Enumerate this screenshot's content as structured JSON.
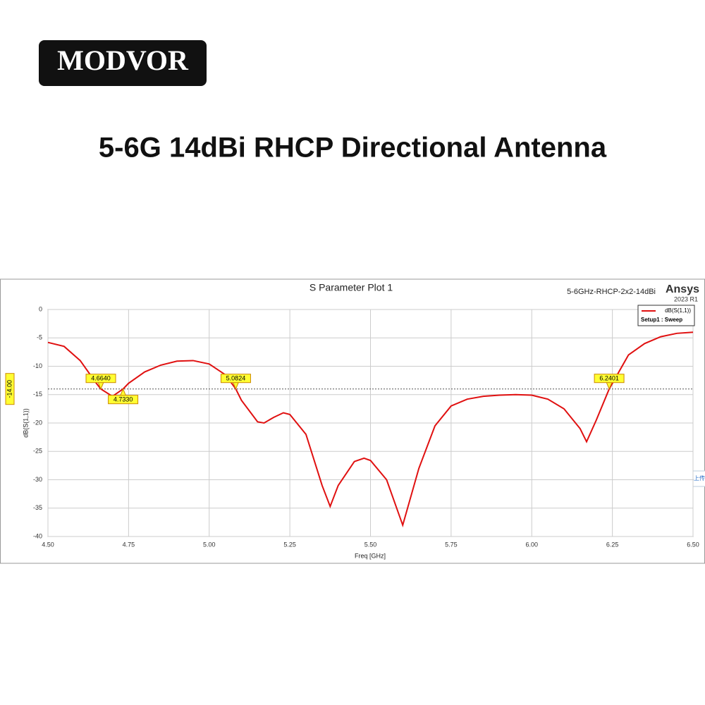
{
  "brand": "MODVOR",
  "headline": "5-6G 14dBi RHCP Directional Antenna",
  "overlay_text": "拖拽至此上传",
  "chart_data": {
    "type": "line",
    "title": "S Parameter Plot 1",
    "project": "5-6GHz-RHCP-2x2-14dBi",
    "vendor": "Ansys",
    "version": "2023 R1",
    "x_label": "Freq [GHz]",
    "y_label": "dB(S(1,1))",
    "legend_subtitle": "Setup1 : Sweep",
    "x": [
      4.5,
      4.55,
      4.6,
      4.65,
      4.664,
      4.7,
      4.733,
      4.75,
      4.8,
      4.85,
      4.9,
      4.95,
      5.0,
      5.05,
      5.0824,
      5.1,
      5.15,
      5.17,
      5.2,
      5.23,
      5.25,
      5.3,
      5.35,
      5.375,
      5.4,
      5.45,
      5.48,
      5.5,
      5.55,
      5.6,
      5.65,
      5.7,
      5.75,
      5.8,
      5.85,
      5.9,
      5.95,
      6.0,
      6.05,
      6.1,
      6.15,
      6.17,
      6.2,
      6.2401,
      6.3,
      6.35,
      6.4,
      6.45,
      6.5
    ],
    "series": [
      {
        "name": "dB(S(1,1))",
        "color": "#e01010",
        "values": [
          -5.8,
          -6.5,
          -9,
          -13,
          -14,
          -15.3,
          -14,
          -13,
          -11,
          -9.8,
          -9.1,
          -9.0,
          -9.6,
          -11.5,
          -14,
          -16,
          -19.8,
          -20.0,
          -19,
          -18.2,
          -18.5,
          -22,
          -31,
          -34.7,
          -31,
          -26.8,
          -26.2,
          -26.6,
          -30,
          -38,
          -28,
          -20.5,
          -17,
          -15.8,
          -15.3,
          -15.1,
          -15.0,
          -15.1,
          -15.8,
          -17.5,
          -21,
          -23.3,
          -19.5,
          -14,
          -8,
          -6,
          -4.8,
          -4.2,
          -4.0
        ]
      }
    ],
    "xlim": [
      4.5,
      6.5
    ],
    "ylim": [
      -40,
      0
    ],
    "xticks": [
      {
        "value": 4.5,
        "label": "4.50"
      },
      {
        "value": 4.75,
        "label": "4.75"
      },
      {
        "value": 5.0,
        "label": "5.00"
      },
      {
        "value": 5.25,
        "label": "5.25"
      },
      {
        "value": 5.5,
        "label": "5.50"
      },
      {
        "value": 5.75,
        "label": "5.75"
      },
      {
        "value": 6.0,
        "label": "6.00"
      },
      {
        "value": 6.25,
        "label": "6.25"
      },
      {
        "value": 6.5,
        "label": "6.50"
      }
    ],
    "yticks": [
      0,
      -5,
      -10,
      -15,
      -20,
      -25,
      -30,
      -35,
      -40
    ],
    "grid": true,
    "legend": "top-right",
    "threshold": {
      "value": -14,
      "label": "-14.00"
    },
    "markers": [
      {
        "value": 4.664,
        "label": "4.6640"
      },
      {
        "value": 4.733,
        "label": "4.7330"
      },
      {
        "value": 5.0824,
        "label": "5.0824"
      },
      {
        "value": 6.2401,
        "label": "6.2401"
      }
    ]
  }
}
